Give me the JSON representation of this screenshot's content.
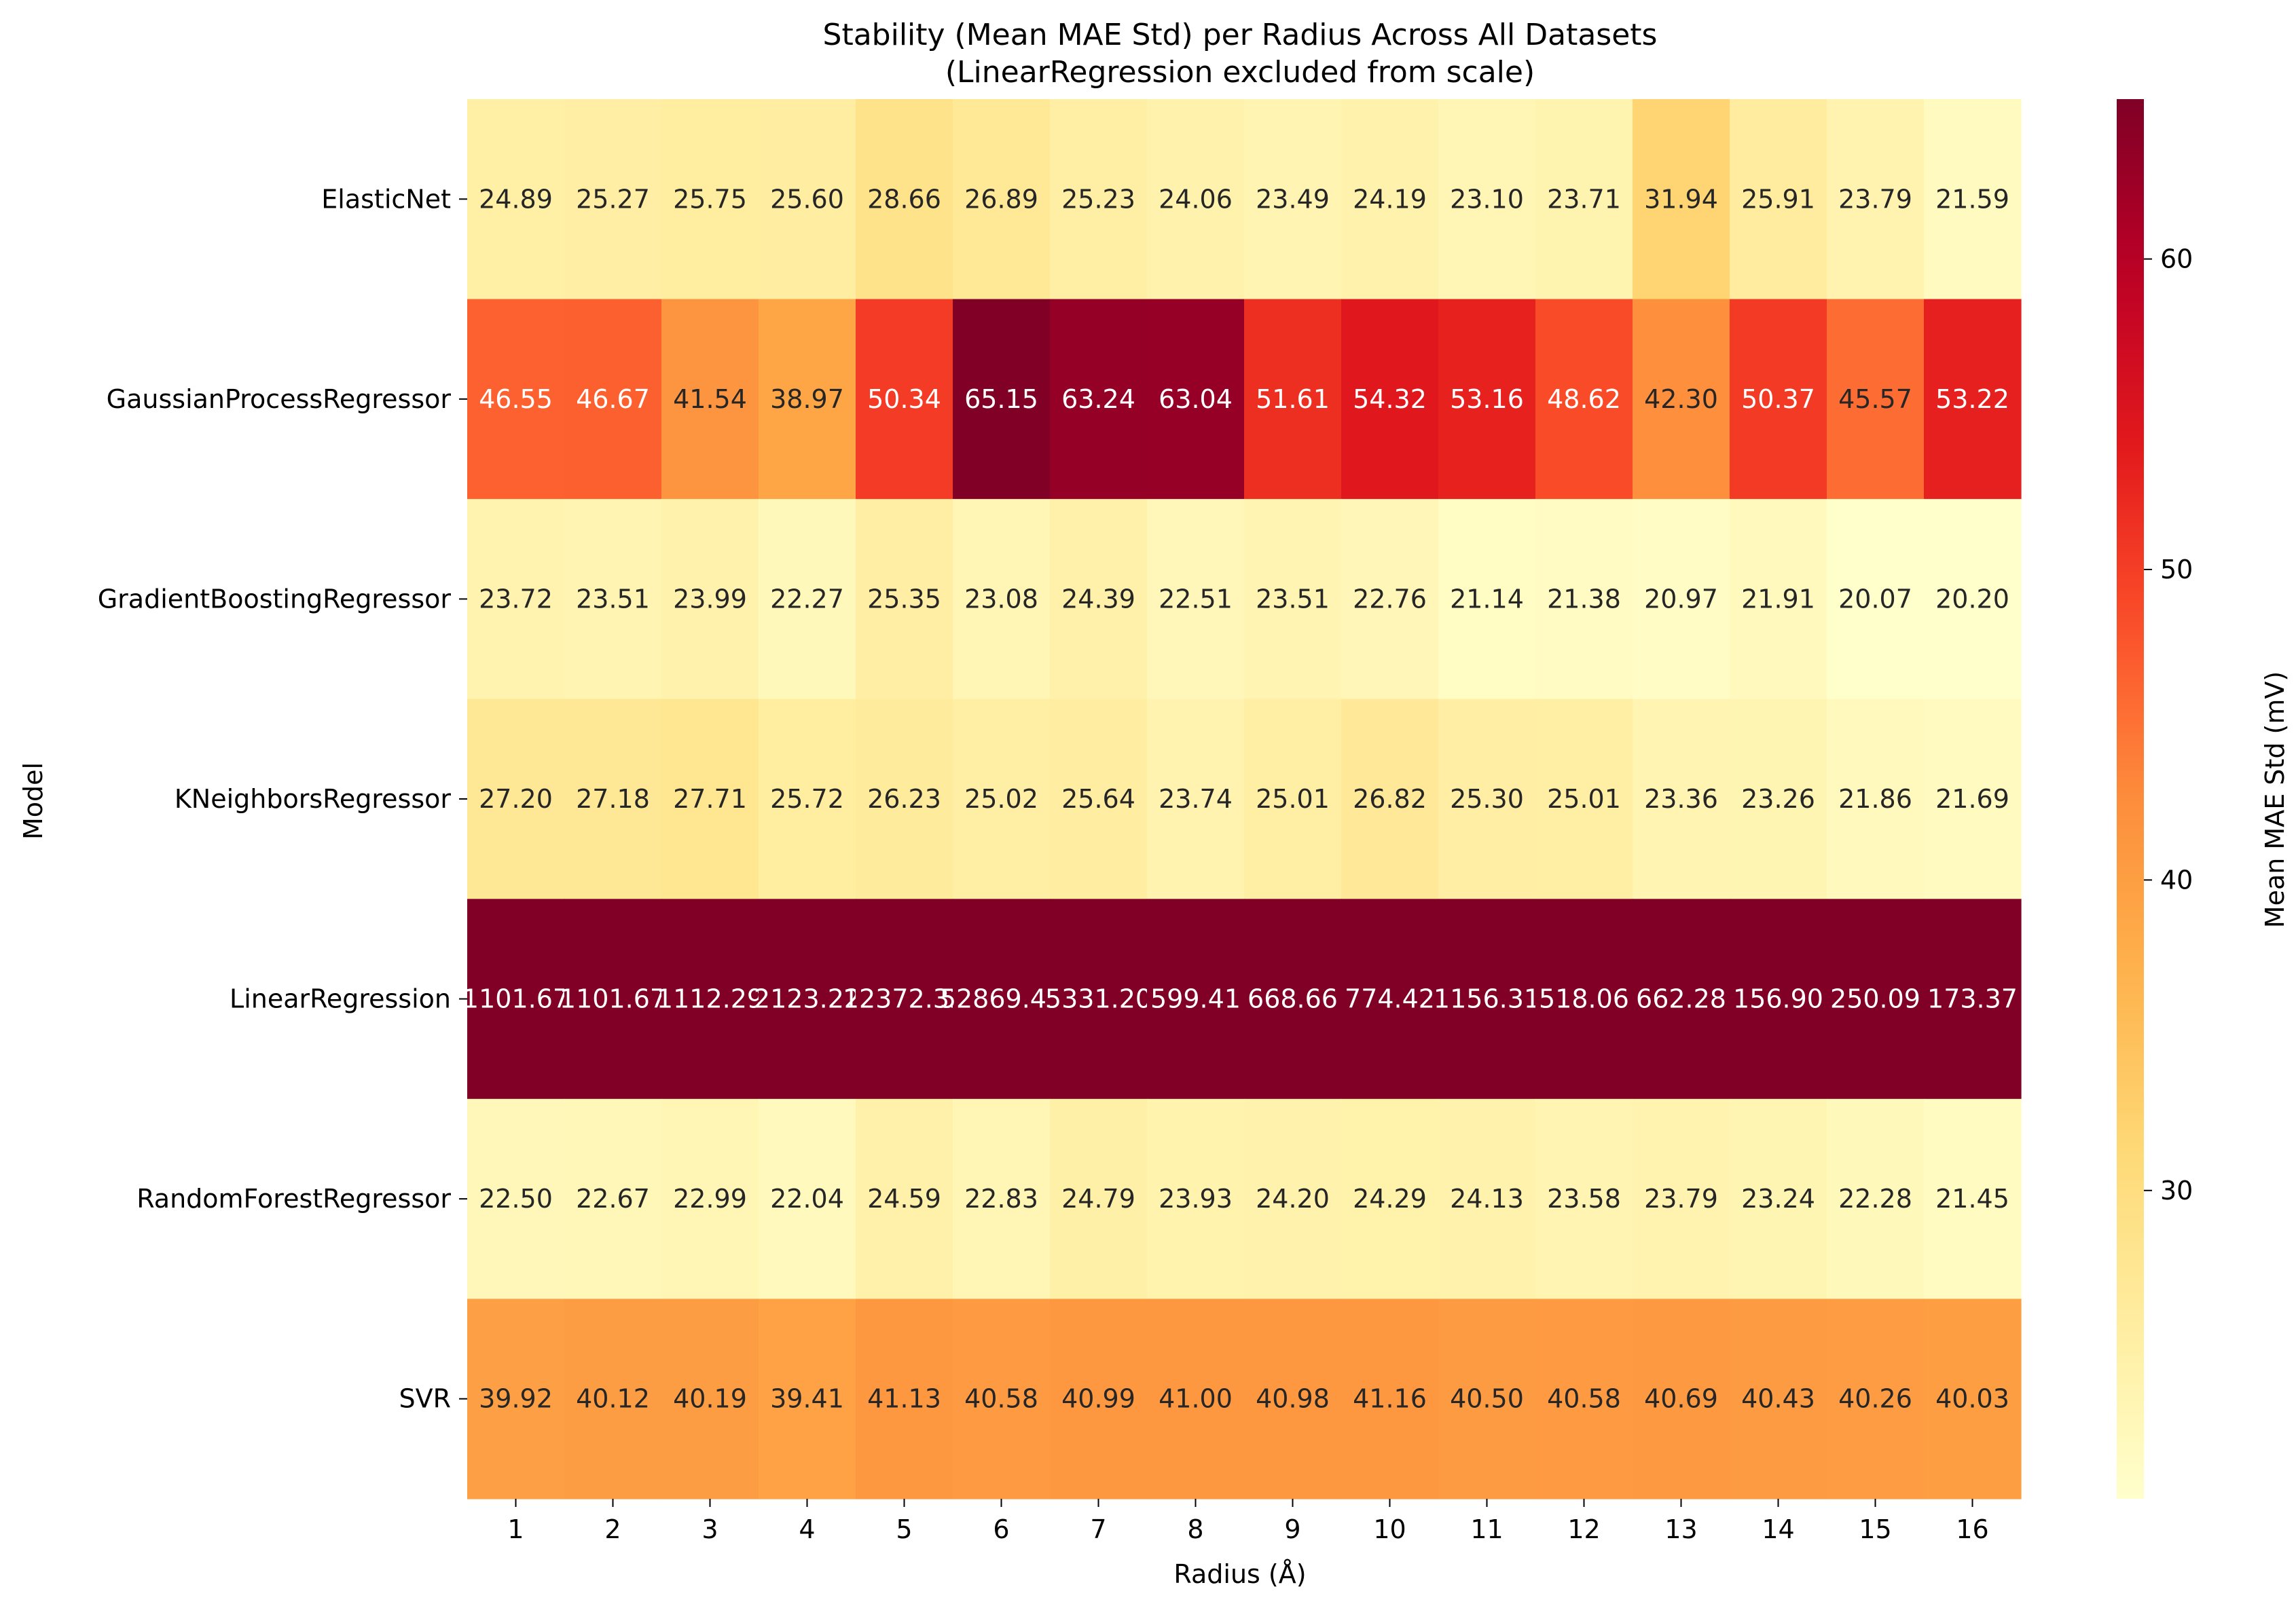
{
  "chart_data": {
    "type": "heatmap",
    "title": "Stability (Mean MAE Std) per Radius Across All Datasets",
    "subtitle": "(LinearRegression excluded from scale)",
    "xlabel": "Radius (Å)",
    "ylabel": "Model",
    "colorbar_label": "Mean MAE Std (mV)",
    "colormap": "YlOrRd",
    "color_range": [
      20.07,
      65.15
    ],
    "colorbar_ticks": [
      30,
      40,
      50,
      60
    ],
    "x": [
      "1",
      "2",
      "3",
      "4",
      "5",
      "6",
      "7",
      "8",
      "9",
      "10",
      "11",
      "12",
      "13",
      "14",
      "15",
      "16"
    ],
    "rows": [
      {
        "model": "ElasticNet",
        "values": [
          24.89,
          25.27,
          25.75,
          25.6,
          28.66,
          26.89,
          25.23,
          24.06,
          23.49,
          24.19,
          23.1,
          23.71,
          31.94,
          25.91,
          23.79,
          21.59
        ],
        "labels": [
          "24.89",
          "25.27",
          "25.75",
          "25.60",
          "28.66",
          "26.89",
          "25.23",
          "24.06",
          "23.49",
          "24.19",
          "23.10",
          "23.71",
          "31.94",
          "25.91",
          "23.79",
          "21.59"
        ]
      },
      {
        "model": "GaussianProcessRegressor",
        "values": [
          46.55,
          46.67,
          41.54,
          38.97,
          50.34,
          65.15,
          63.24,
          63.04,
          51.61,
          54.32,
          53.16,
          48.62,
          42.3,
          50.37,
          45.57,
          53.22
        ],
        "labels": [
          "46.55",
          "46.67",
          "41.54",
          "38.97",
          "50.34",
          "65.15",
          "63.24",
          "63.04",
          "51.61",
          "54.32",
          "53.16",
          "48.62",
          "42.30",
          "50.37",
          "45.57",
          "53.22"
        ]
      },
      {
        "model": "GradientBoostingRegressor",
        "values": [
          23.72,
          23.51,
          23.99,
          22.27,
          25.35,
          23.08,
          24.39,
          22.51,
          23.51,
          22.76,
          21.14,
          21.38,
          20.97,
          21.91,
          20.07,
          20.2
        ],
        "labels": [
          "23.72",
          "23.51",
          "23.99",
          "22.27",
          "25.35",
          "23.08",
          "24.39",
          "22.51",
          "23.51",
          "22.76",
          "21.14",
          "21.38",
          "20.97",
          "21.91",
          "20.07",
          "20.20"
        ]
      },
      {
        "model": "KNeighborsRegressor",
        "values": [
          27.2,
          27.18,
          27.71,
          25.72,
          26.23,
          25.02,
          25.64,
          23.74,
          25.01,
          26.82,
          25.3,
          25.01,
          23.36,
          23.26,
          21.86,
          21.69
        ],
        "labels": [
          "27.20",
          "27.18",
          "27.71",
          "25.72",
          "26.23",
          "25.02",
          "25.64",
          "23.74",
          "25.01",
          "26.82",
          "25.30",
          "25.01",
          "23.36",
          "23.26",
          "21.86",
          "21.69"
        ]
      },
      {
        "model": "LinearRegression",
        "values": [
          1101.67,
          1101.67,
          1112.29,
          2123.22,
          12372.32,
          52869.45,
          5331.2,
          599.41,
          668.66,
          774.42,
          1156.31,
          518.06,
          662.28,
          156.9,
          250.09,
          173.37
        ],
        "labels": [
          "1101.67",
          "1101.67",
          "1112.29",
          "2123.22",
          "12372.32",
          "52869.45",
          "5331.20",
          "599.41",
          "668.66",
          "774.42",
          "1156.31",
          "518.06",
          "662.28",
          "156.90",
          "250.09",
          "173.37"
        ]
      },
      {
        "model": "RandomForestRegressor",
        "values": [
          22.5,
          22.67,
          22.99,
          22.04,
          24.59,
          22.83,
          24.79,
          23.93,
          24.2,
          24.29,
          24.13,
          23.58,
          23.79,
          23.24,
          22.28,
          21.45
        ],
        "labels": [
          "22.50",
          "22.67",
          "22.99",
          "22.04",
          "24.59",
          "22.83",
          "24.79",
          "23.93",
          "24.20",
          "24.29",
          "24.13",
          "23.58",
          "23.79",
          "23.24",
          "22.28",
          "21.45"
        ]
      },
      {
        "model": "SVR",
        "values": [
          39.92,
          40.12,
          40.19,
          39.41,
          41.13,
          40.58,
          40.99,
          41.0,
          40.98,
          41.16,
          40.5,
          40.58,
          40.69,
          40.43,
          40.26,
          40.03
        ],
        "labels": [
          "39.92",
          "40.12",
          "40.19",
          "39.41",
          "41.13",
          "40.58",
          "40.99",
          "41.00",
          "40.98",
          "41.16",
          "40.50",
          "40.58",
          "40.69",
          "40.43",
          "40.26",
          "40.03"
        ]
      }
    ]
  }
}
